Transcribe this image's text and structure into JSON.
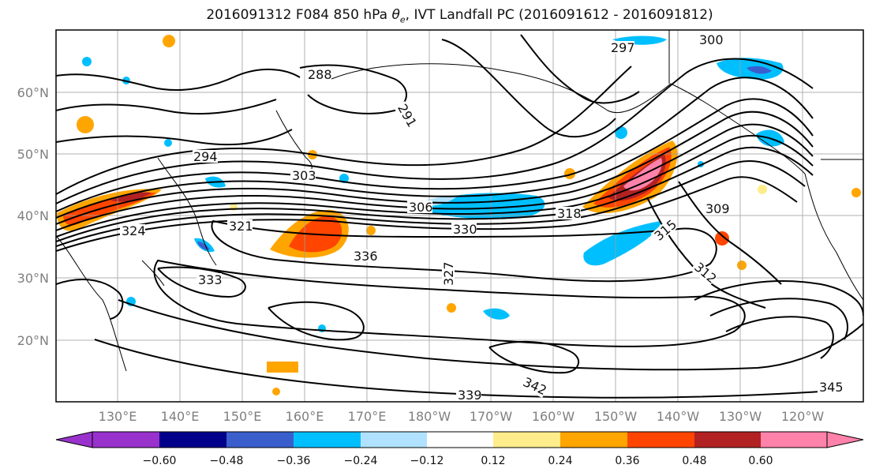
{
  "title": {
    "prefix": "2016091312 F084 850 hPa ",
    "symbol": "θ",
    "symbol_sub": "e",
    "suffix": ", IVT Landfall PC (2016091612 - 2016091812)"
  },
  "map": {
    "lon_labels": [
      "130°E",
      "140°E",
      "150°E",
      "160°E",
      "170°E",
      "180°W",
      "170°W",
      "160°W",
      "150°W",
      "140°W",
      "130°W",
      "120°W"
    ],
    "lat_labels": [
      "60°N",
      "50°N",
      "40°N",
      "30°N",
      "20°N"
    ],
    "contour_labels": [
      "288",
      "291",
      "294",
      "297",
      "300",
      "303",
      "306",
      "309",
      "312",
      "315",
      "318",
      "321",
      "324",
      "327",
      "330",
      "333",
      "336",
      "339",
      "342",
      "345"
    ],
    "contour_color": "#000000",
    "grid": true
  },
  "colorbar": {
    "tick_labels": [
      "−0.60",
      "−0.48",
      "−0.36",
      "−0.24",
      "−0.12",
      "0.12",
      "0.24",
      "0.36",
      "0.48",
      "0.60"
    ],
    "colors": [
      "#9932cc",
      "#00008b",
      "#3a5fcd",
      "#00bfff",
      "#b0e2ff",
      "#ffffff",
      "#ffec8b",
      "#ffa500",
      "#ff4500",
      "#b22222",
      "#ff82ab",
      "#ff82ab"
    ]
  }
}
